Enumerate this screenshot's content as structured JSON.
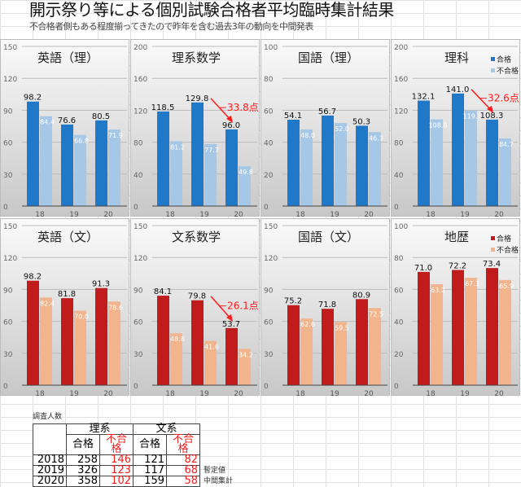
{
  "header": {
    "title": "開示祭り等による個別試験合格者平均臨時集計結果",
    "subtitle": "不合格者側もある程度揃ってきたので昨年を含む過去3年の動向を中間発表"
  },
  "legend": {
    "pass": "合格",
    "fail": "不合格"
  },
  "colors": {
    "blue_pass": "#1f78c8",
    "blue_fail": "#a6c8e8",
    "red_pass": "#c01c1c",
    "red_fail": "#f2b48c",
    "annotation": "#ff1a1a"
  },
  "chart_data": [
    {
      "type": "bar",
      "title": "英語（理）",
      "categories": [
        "18",
        "19",
        "20"
      ],
      "ylim": [
        0,
        150
      ],
      "ticks": [
        0,
        30,
        60,
        90,
        120,
        150
      ],
      "theme": "blue",
      "series": [
        {
          "name": "合格",
          "values": [
            98.2,
            76.6,
            80.5
          ]
        },
        {
          "name": "不合格",
          "values": [
            84.4,
            66.8,
            71.9
          ]
        }
      ]
    },
    {
      "type": "bar",
      "title": "理系数学",
      "categories": [
        "18",
        "19",
        "20"
      ],
      "ylim": [
        0,
        200
      ],
      "ticks": [
        0,
        40,
        80,
        120,
        160,
        200
      ],
      "theme": "blue",
      "annotation": "−33.8点",
      "series": [
        {
          "name": "合格",
          "values": [
            118.5,
            129.8,
            96.0
          ]
        },
        {
          "name": "不合格",
          "values": [
            81.2,
            77.7,
            49.8
          ]
        }
      ]
    },
    {
      "type": "bar",
      "title": "国語（理）",
      "categories": [
        "18",
        "19",
        "20"
      ],
      "ylim": [
        0,
        100
      ],
      "ticks": [
        0,
        20,
        40,
        60,
        80,
        100
      ],
      "theme": "blue",
      "series": [
        {
          "name": "合格",
          "values": [
            54.1,
            56.7,
            50.3
          ]
        },
        {
          "name": "不合格",
          "values": [
            48.0,
            52.0,
            46.3
          ]
        }
      ]
    },
    {
      "type": "bar",
      "title": "理科",
      "categories": [
        "18",
        "19",
        "20"
      ],
      "ylim": [
        0,
        200
      ],
      "ticks": [
        0,
        40,
        80,
        120,
        160,
        200
      ],
      "theme": "blue",
      "legend": "top-right",
      "annotation": "−32.6点",
      "series": [
        {
          "name": "合格",
          "values": [
            132.1,
            141.0,
            108.3
          ]
        },
        {
          "name": "不合格",
          "values": [
            108.6,
            119.7,
            84.7
          ]
        }
      ]
    },
    {
      "type": "bar",
      "title": "英語（文）",
      "categories": [
        "18",
        "19",
        "20"
      ],
      "ylim": [
        0,
        150
      ],
      "ticks": [
        0,
        30,
        60,
        90,
        120,
        150
      ],
      "theme": "red",
      "series": [
        {
          "name": "合格",
          "values": [
            98.2,
            81.8,
            91.3
          ]
        },
        {
          "name": "不合格",
          "values": [
            82.4,
            70.0,
            78.6
          ]
        }
      ]
    },
    {
      "type": "bar",
      "title": "文系数学",
      "categories": [
        "18",
        "19",
        "20"
      ],
      "ylim": [
        0,
        150
      ],
      "ticks": [
        0,
        30,
        60,
        90,
        120,
        150
      ],
      "theme": "red",
      "annotation": "−26.1点",
      "series": [
        {
          "name": "合格",
          "values": [
            84.1,
            79.8,
            53.7
          ]
        },
        {
          "name": "不合格",
          "values": [
            48.8,
            41.6,
            34.2
          ]
        }
      ]
    },
    {
      "type": "bar",
      "title": "国語（文）",
      "categories": [
        "18",
        "19",
        "20"
      ],
      "ylim": [
        0,
        150
      ],
      "ticks": [
        0,
        30,
        60,
        90,
        120,
        150
      ],
      "theme": "red",
      "series": [
        {
          "name": "合格",
          "values": [
            75.2,
            71.8,
            80.9
          ]
        },
        {
          "name": "不合格",
          "values": [
            62.6,
            59.5,
            72.5
          ]
        }
      ]
    },
    {
      "type": "bar",
      "title": "地歴",
      "categories": [
        "18",
        "19",
        "20"
      ],
      "ylim": [
        0,
        100
      ],
      "ticks": [
        0,
        20,
        40,
        60,
        80,
        100
      ],
      "theme": "red",
      "legend": "top-right",
      "series": [
        {
          "name": "合格",
          "values": [
            71.0,
            72.2,
            73.4
          ]
        },
        {
          "name": "不合格",
          "values": [
            63.2,
            67.3,
            65.9
          ]
        }
      ]
    }
  ],
  "table": {
    "label": "調査人数",
    "groups": [
      "理系",
      "文系"
    ],
    "cols": [
      "合格",
      "不合格",
      "合格",
      "不合格"
    ],
    "rows": [
      {
        "year": "2018",
        "values": [
          "258",
          "146",
          "121",
          "82"
        ],
        "note": ""
      },
      {
        "year": "2019",
        "values": [
          "326",
          "123",
          "117",
          "68"
        ],
        "note": "暫定値"
      },
      {
        "year": "2020",
        "values": [
          "358",
          "102",
          "159",
          "58"
        ],
        "note": "中間集計"
      }
    ]
  }
}
